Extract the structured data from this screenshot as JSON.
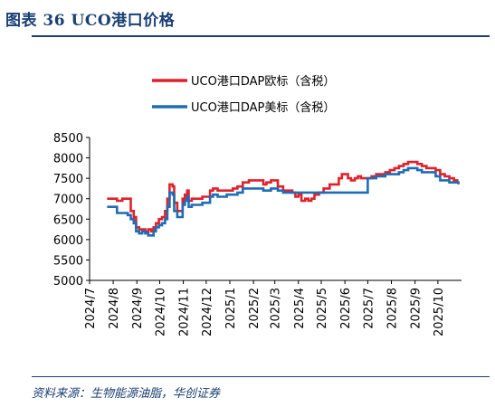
{
  "header": {
    "figure_title": "图表 36   UCO港口价格"
  },
  "footer": {
    "source": "资料来源：生物能源油脂，华创证券"
  },
  "colors": {
    "brand": "#1a3f74",
    "series_eu": "#e0202a",
    "series_us": "#1f6cb5"
  },
  "chart_data": {
    "type": "line",
    "title": "",
    "xlabel": "",
    "ylabel": "",
    "ylim": [
      5000,
      8500
    ],
    "yticks": [
      5000,
      5500,
      6000,
      6500,
      7000,
      7500,
      8000,
      8500
    ],
    "xticks": [
      "2024/7",
      "2024/8",
      "2024/9",
      "2024/10",
      "2024/11",
      "2024/12",
      "2025/1",
      "2025/2",
      "2025/3",
      "2025/4",
      "2025/5",
      "2025/6",
      "2025/7",
      "2025/8",
      "2025/9",
      "2025/10"
    ],
    "legend_position": "top-center",
    "grid": false,
    "series": [
      {
        "name": "UCO港口DAP欧标（含税）",
        "color": "#e0202a",
        "points": [
          [
            "2024-07-24",
            7000
          ],
          [
            "2024-08-01",
            7000
          ],
          [
            "2024-08-06",
            6950
          ],
          [
            "2024-08-13",
            7000
          ],
          [
            "2024-08-20",
            7000
          ],
          [
            "2024-08-24",
            6700
          ],
          [
            "2024-08-28",
            6550
          ],
          [
            "2024-08-31",
            6300
          ],
          [
            "2024-09-04",
            6250
          ],
          [
            "2024-09-08",
            6250
          ],
          [
            "2024-09-12",
            6200
          ],
          [
            "2024-09-16",
            6250
          ],
          [
            "2024-09-20",
            6200
          ],
          [
            "2024-09-23",
            6300
          ],
          [
            "2024-09-26",
            6400
          ],
          [
            "2024-09-30",
            6500
          ],
          [
            "2024-10-04",
            6550
          ],
          [
            "2024-10-08",
            6700
          ],
          [
            "2024-10-11",
            7000
          ],
          [
            "2024-10-14",
            7350
          ],
          [
            "2024-10-18",
            7300
          ],
          [
            "2024-10-20",
            6900
          ],
          [
            "2024-10-24",
            6700
          ],
          [
            "2024-10-28",
            6700
          ],
          [
            "2024-10-31",
            7000
          ],
          [
            "2024-11-03",
            7100
          ],
          [
            "2024-11-06",
            7200
          ],
          [
            "2024-11-08",
            6950
          ],
          [
            "2024-11-12",
            7000
          ],
          [
            "2024-11-18",
            7000
          ],
          [
            "2024-11-26",
            7050
          ],
          [
            "2024-12-02",
            7050
          ],
          [
            "2024-12-06",
            7200
          ],
          [
            "2024-12-10",
            7250
          ],
          [
            "2024-12-16",
            7200
          ],
          [
            "2024-12-22",
            7200
          ],
          [
            "2024-12-28",
            7200
          ],
          [
            "2025-01-05",
            7250
          ],
          [
            "2025-01-11",
            7300
          ],
          [
            "2025-01-18",
            7400
          ],
          [
            "2025-01-26",
            7450
          ],
          [
            "2025-02-05",
            7450
          ],
          [
            "2025-02-10",
            7450
          ],
          [
            "2025-02-14",
            7350
          ],
          [
            "2025-02-18",
            7400
          ],
          [
            "2025-02-24",
            7450
          ],
          [
            "2025-03-01",
            7450
          ],
          [
            "2025-03-05",
            7300
          ],
          [
            "2025-03-12",
            7200
          ],
          [
            "2025-03-18",
            7200
          ],
          [
            "2025-03-24",
            7150
          ],
          [
            "2025-03-28",
            7050
          ],
          [
            "2025-04-01",
            7100
          ],
          [
            "2025-04-05",
            6950
          ],
          [
            "2025-04-10",
            7000
          ],
          [
            "2025-04-14",
            6950
          ],
          [
            "2025-04-18",
            7000
          ],
          [
            "2025-04-22",
            7100
          ],
          [
            "2025-04-28",
            7150
          ],
          [
            "2025-05-04",
            7250
          ],
          [
            "2025-05-08",
            7250
          ],
          [
            "2025-05-12",
            7350
          ],
          [
            "2025-05-16",
            7350
          ],
          [
            "2025-05-20",
            7350
          ],
          [
            "2025-05-24",
            7500
          ],
          [
            "2025-05-28",
            7600
          ],
          [
            "2025-06-01",
            7600
          ],
          [
            "2025-06-05",
            7500
          ],
          [
            "2025-06-09",
            7450
          ],
          [
            "2025-06-14",
            7500
          ],
          [
            "2025-06-18",
            7550
          ],
          [
            "2025-06-22",
            7500
          ],
          [
            "2025-06-26",
            7500
          ],
          [
            "2025-07-01",
            7500
          ],
          [
            "2025-07-06",
            7550
          ],
          [
            "2025-07-12",
            7600
          ],
          [
            "2025-07-18",
            7600
          ],
          [
            "2025-07-24",
            7650
          ],
          [
            "2025-07-30",
            7700
          ],
          [
            "2025-08-05",
            7750
          ],
          [
            "2025-08-11",
            7800
          ],
          [
            "2025-08-17",
            7850
          ],
          [
            "2025-08-23",
            7900
          ],
          [
            "2025-08-29",
            7900
          ],
          [
            "2025-09-04",
            7850
          ],
          [
            "2025-09-10",
            7800
          ],
          [
            "2025-09-16",
            7750
          ],
          [
            "2025-09-22",
            7750
          ],
          [
            "2025-09-28",
            7700
          ],
          [
            "2025-10-04",
            7600
          ],
          [
            "2025-10-10",
            7550
          ],
          [
            "2025-10-16",
            7500
          ],
          [
            "2025-10-22",
            7450
          ],
          [
            "2025-10-28",
            7450
          ]
        ]
      },
      {
        "name": "UCO港口DAP美标（含税）",
        "color": "#1f6cb5",
        "points": [
          [
            "2024-07-24",
            6800
          ],
          [
            "2024-08-01",
            6800
          ],
          [
            "2024-08-06",
            6650
          ],
          [
            "2024-08-13",
            6650
          ],
          [
            "2024-08-20",
            6600
          ],
          [
            "2024-08-24",
            6500
          ],
          [
            "2024-08-28",
            6400
          ],
          [
            "2024-08-31",
            6200
          ],
          [
            "2024-09-04",
            6150
          ],
          [
            "2024-09-08",
            6200
          ],
          [
            "2024-09-12",
            6150
          ],
          [
            "2024-09-16",
            6100
          ],
          [
            "2024-09-20",
            6100
          ],
          [
            "2024-09-23",
            6200
          ],
          [
            "2024-09-26",
            6300
          ],
          [
            "2024-09-30",
            6350
          ],
          [
            "2024-10-04",
            6400
          ],
          [
            "2024-10-08",
            6500
          ],
          [
            "2024-10-11",
            6800
          ],
          [
            "2024-10-14",
            7150
          ],
          [
            "2024-10-18",
            7100
          ],
          [
            "2024-10-20",
            6700
          ],
          [
            "2024-10-24",
            6550
          ],
          [
            "2024-10-28",
            6550
          ],
          [
            "2024-10-31",
            6850
          ],
          [
            "2024-11-03",
            6950
          ],
          [
            "2024-11-06",
            7050
          ],
          [
            "2024-11-08",
            6800
          ],
          [
            "2024-11-12",
            6850
          ],
          [
            "2024-11-18",
            6850
          ],
          [
            "2024-11-26",
            6900
          ],
          [
            "2024-12-02",
            6900
          ],
          [
            "2024-12-06",
            7050
          ],
          [
            "2024-12-10",
            7100
          ],
          [
            "2024-12-16",
            7050
          ],
          [
            "2024-12-22",
            7050
          ],
          [
            "2024-12-28",
            7100
          ],
          [
            "2025-01-05",
            7100
          ],
          [
            "2025-01-11",
            7150
          ],
          [
            "2025-01-18",
            7250
          ],
          [
            "2025-01-26",
            7250
          ],
          [
            "2025-02-05",
            7250
          ],
          [
            "2025-02-10",
            7250
          ],
          [
            "2025-02-14",
            7200
          ],
          [
            "2025-02-18",
            7200
          ],
          [
            "2025-02-24",
            7250
          ],
          [
            "2025-03-01",
            7250
          ],
          [
            "2025-03-05",
            7200
          ],
          [
            "2025-03-12",
            7150
          ],
          [
            "2025-03-18",
            7150
          ],
          [
            "2025-03-24",
            7150
          ],
          [
            "2025-03-28",
            7150
          ],
          [
            "2025-04-01",
            7150
          ],
          [
            "2025-04-05",
            7150
          ],
          [
            "2025-04-10",
            7150
          ],
          [
            "2025-04-14",
            7150
          ],
          [
            "2025-04-18",
            7150
          ],
          [
            "2025-04-22",
            7150
          ],
          [
            "2025-04-28",
            7150
          ],
          [
            "2025-05-04",
            7150
          ],
          [
            "2025-05-08",
            7150
          ],
          [
            "2025-05-12",
            7150
          ],
          [
            "2025-05-16",
            7150
          ],
          [
            "2025-05-20",
            7150
          ],
          [
            "2025-05-24",
            7150
          ],
          [
            "2025-05-28",
            7150
          ],
          [
            "2025-06-01",
            7150
          ],
          [
            "2025-06-05",
            7150
          ],
          [
            "2025-06-09",
            7150
          ],
          [
            "2025-06-14",
            7150
          ],
          [
            "2025-06-18",
            7150
          ],
          [
            "2025-06-22",
            7150
          ],
          [
            "2025-06-26",
            7150
          ],
          [
            "2025-07-01",
            7500
          ],
          [
            "2025-07-06",
            7500
          ],
          [
            "2025-07-12",
            7550
          ],
          [
            "2025-07-18",
            7550
          ],
          [
            "2025-07-24",
            7600
          ],
          [
            "2025-07-30",
            7600
          ],
          [
            "2025-08-05",
            7600
          ],
          [
            "2025-08-11",
            7650
          ],
          [
            "2025-08-17",
            7700
          ],
          [
            "2025-08-23",
            7750
          ],
          [
            "2025-08-29",
            7750
          ],
          [
            "2025-09-04",
            7700
          ],
          [
            "2025-09-10",
            7650
          ],
          [
            "2025-09-16",
            7650
          ],
          [
            "2025-09-22",
            7650
          ],
          [
            "2025-09-28",
            7550
          ],
          [
            "2025-10-04",
            7450
          ],
          [
            "2025-10-10",
            7450
          ],
          [
            "2025-10-16",
            7400
          ],
          [
            "2025-10-22",
            7400
          ],
          [
            "2025-10-28",
            7350
          ]
        ]
      }
    ]
  }
}
